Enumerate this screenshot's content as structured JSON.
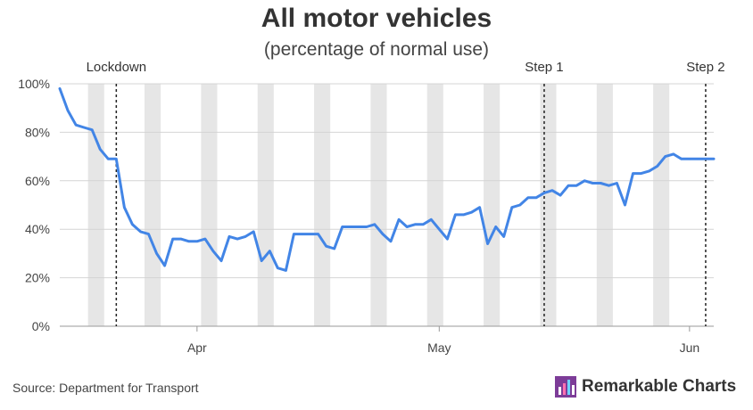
{
  "chart_data": {
    "type": "line",
    "title": "All motor vehicles",
    "subtitle": "(percentage of normal use)",
    "source": "Source: Department for Transport",
    "brand": "Remarkable Charts",
    "x_range_day": [
      1,
      82
    ],
    "ylim": [
      0,
      100
    ],
    "y_ticks": [
      {
        "value": 0,
        "label": "0%"
      },
      {
        "value": 20,
        "label": "20%"
      },
      {
        "value": 40,
        "label": "40%"
      },
      {
        "value": 60,
        "label": "60%"
      },
      {
        "value": 80,
        "label": "80%"
      },
      {
        "value": 100,
        "label": "100%"
      }
    ],
    "x_ticks": [
      {
        "day": 18,
        "label": "Apr"
      },
      {
        "day": 48,
        "label": "May"
      },
      {
        "day": 79,
        "label": "Jun"
      }
    ],
    "weekend_bands": [
      [
        5,
        6
      ],
      [
        12,
        13
      ],
      [
        19,
        20
      ],
      [
        26,
        27
      ],
      [
        33,
        34
      ],
      [
        40,
        41
      ],
      [
        47,
        48
      ],
      [
        54,
        55
      ],
      [
        61,
        62
      ],
      [
        68,
        69
      ],
      [
        75,
        76
      ]
    ],
    "annotations": [
      {
        "day": 8,
        "label": "Lockdown"
      },
      {
        "day": 61,
        "label": "Step 1"
      },
      {
        "day": 81,
        "label": "Step 2"
      }
    ],
    "series": [
      {
        "name": "All motor vehicles",
        "color": "#4285e6",
        "x": [
          1,
          2,
          3,
          4,
          5,
          6,
          7,
          8,
          9,
          10,
          11,
          12,
          13,
          14,
          15,
          16,
          17,
          18,
          19,
          20,
          21,
          22,
          23,
          24,
          25,
          26,
          27,
          28,
          29,
          30,
          31,
          32,
          33,
          34,
          35,
          36,
          37,
          38,
          39,
          40,
          41,
          42,
          43,
          44,
          45,
          46,
          47,
          48,
          49,
          50,
          51,
          52,
          53,
          54,
          55,
          56,
          57,
          58,
          59,
          60,
          61,
          62,
          63,
          64,
          65,
          66,
          67,
          68,
          69,
          70,
          71,
          72,
          73,
          74,
          75,
          76,
          77,
          78,
          79,
          80,
          81,
          82
        ],
        "values": [
          98,
          89,
          83,
          82,
          81,
          73,
          69,
          69,
          49,
          42,
          39,
          38,
          30,
          25,
          36,
          36,
          35,
          35,
          36,
          31,
          27,
          37,
          36,
          37,
          39,
          27,
          31,
          24,
          23,
          38,
          38,
          38,
          38,
          33,
          32,
          41,
          41,
          41,
          41,
          42,
          38,
          35,
          44,
          41,
          42,
          42,
          44,
          40,
          36,
          46,
          46,
          47,
          49,
          34,
          41,
          37,
          49,
          50,
          53,
          53,
          55,
          56,
          54,
          58,
          58,
          60,
          59,
          59,
          58,
          59,
          50,
          63,
          63,
          64,
          66,
          70,
          71,
          69,
          69,
          69,
          69,
          69
        ]
      }
    ]
  }
}
